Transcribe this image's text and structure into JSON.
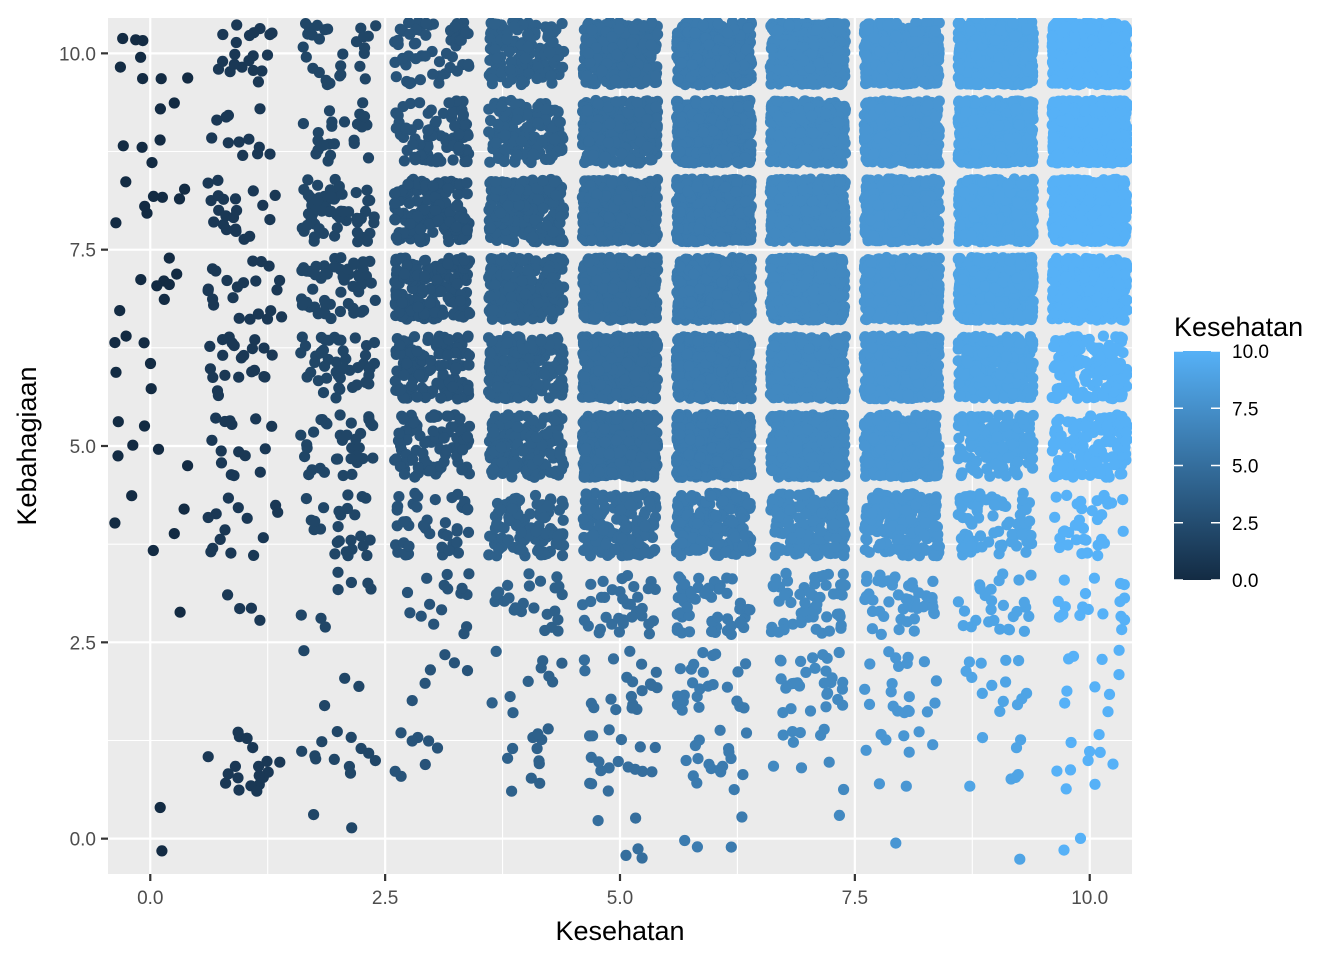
{
  "chart_data": {
    "type": "scatter",
    "title": "",
    "xlabel": "Kesehatan",
    "ylabel": "Kebahagiaan",
    "xlim": [
      -0.45,
      10.45
    ],
    "ylim": [
      -0.45,
      10.45
    ],
    "x_ticks": [
      0,
      2.5,
      5,
      7.5,
      10
    ],
    "x_tick_labels": [
      "0.0",
      "2.5",
      "5.0",
      "7.5",
      "10.0"
    ],
    "y_ticks": [
      0,
      2.5,
      5,
      7.5,
      10
    ],
    "y_tick_labels": [
      "0.0",
      "2.5",
      "5.0",
      "7.5",
      "10.0"
    ],
    "grid": true,
    "jitter": 0.4,
    "x_levels": [
      0,
      1,
      2,
      3,
      4,
      5,
      6,
      7,
      8,
      9,
      10
    ],
    "y_levels": [
      0,
      1,
      2,
      3,
      4,
      5,
      6,
      7,
      8,
      9,
      10
    ],
    "point_counts": [
      [
        2,
        0,
        2,
        0,
        0,
        5,
        4,
        1,
        1,
        1,
        2
      ],
      [
        0,
        20,
        12,
        8,
        12,
        18,
        18,
        10,
        9,
        7,
        10
      ],
      [
        0,
        0,
        4,
        6,
        10,
        20,
        25,
        30,
        20,
        14,
        10
      ],
      [
        1,
        4,
        8,
        16,
        24,
        35,
        50,
        60,
        45,
        28,
        18
      ],
      [
        5,
        14,
        25,
        45,
        110,
        160,
        190,
        190,
        200,
        80,
        35
      ],
      [
        6,
        15,
        35,
        90,
        170,
        420,
        460,
        440,
        420,
        160,
        130
      ],
      [
        6,
        22,
        48,
        120,
        210,
        430,
        480,
        460,
        460,
        300,
        160
      ],
      [
        8,
        22,
        55,
        160,
        230,
        460,
        520,
        520,
        520,
        560,
        440
      ],
      [
        8,
        22,
        60,
        150,
        220,
        450,
        520,
        540,
        560,
        620,
        580
      ],
      [
        6,
        12,
        24,
        80,
        140,
        330,
        480,
        520,
        560,
        620,
        700
      ],
      [
        8,
        20,
        28,
        60,
        140,
        330,
        440,
        520,
        560,
        640,
        760
      ]
    ],
    "color_scale": {
      "variable": "Kesehatan",
      "low": "#132B43",
      "high": "#56B1F7",
      "limits": [
        0,
        10
      ]
    },
    "legend": {
      "title": "Kesehatan",
      "labels": [
        "10.0",
        "7.5",
        "5.0",
        "2.5",
        "0.0"
      ],
      "values": [
        10,
        7.5,
        5,
        2.5,
        0
      ],
      "position": "right"
    }
  }
}
